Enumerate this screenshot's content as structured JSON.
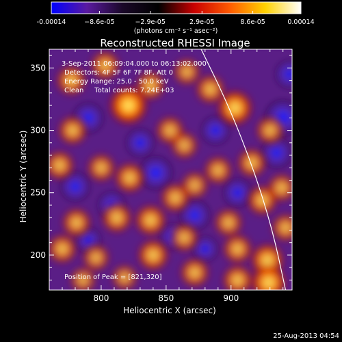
{
  "chart_data": {
    "type": "heatmap",
    "title": "Reconstructed RHESSI Image",
    "xlabel": "Heliocentric X (arcsec)",
    "ylabel": "Heliocentric Y (arcsec)",
    "xlim": [
      760,
      947
    ],
    "ylim": [
      172,
      365
    ],
    "x_ticks": [
      800,
      850,
      900
    ],
    "y_ticks": [
      200,
      250,
      300,
      350
    ],
    "colorbar": {
      "range": [
        -0.00014,
        0.00014
      ],
      "tick_values": [
        -0.00014,
        -8.6e-05,
        -2.9e-05,
        2.9e-05,
        8.6e-05,
        0.00014
      ],
      "tick_labels": [
        "-0.00014",
        "−8.6e-05",
        "−2.9e-05",
        "2.9e-05",
        "8.6e-05",
        "0.00014"
      ],
      "unit_label": "(photons cm⁻² s⁻¹ asec⁻²)",
      "colors": [
        "#0000ff",
        "#5a1aa0",
        "#1a0828",
        "#000000",
        "#c80000",
        "#ff5a00",
        "#ffd200",
        "#ffffff"
      ]
    },
    "info_lines": [
      "3-Sep-2011 06:09:04.000 to 06:13:02.000",
      "Detectors: 4F 5F 6F 7F 8F, Att 0",
      "Energy Range: 25.0 - 50.0 keV",
      "Clean     Total counts: 7.24E+03"
    ],
    "peak_label": "Position of Peak = [821,320]",
    "peak": [
      821,
      320
    ],
    "limb_arc": [
      [
        877,
        365
      ],
      [
        898,
        320
      ],
      [
        917,
        270
      ],
      [
        932,
        220
      ],
      [
        942,
        172
      ]
    ],
    "hotspots": [
      {
        "x": 821,
        "y": 320,
        "a": 1.0
      },
      {
        "x": 838,
        "y": 336,
        "a": 0.55
      },
      {
        "x": 903,
        "y": 318,
        "a": 0.85
      },
      {
        "x": 884,
        "y": 333,
        "a": 0.55
      },
      {
        "x": 777,
        "y": 340,
        "a": 0.6
      },
      {
        "x": 803,
        "y": 352,
        "a": 0.55
      },
      {
        "x": 866,
        "y": 347,
        "a": 0.45
      },
      {
        "x": 853,
        "y": 300,
        "a": 0.5
      },
      {
        "x": 864,
        "y": 288,
        "a": 0.45
      },
      {
        "x": 778,
        "y": 300,
        "a": 0.55
      },
      {
        "x": 768,
        "y": 272,
        "a": 0.55
      },
      {
        "x": 822,
        "y": 262,
        "a": 0.6
      },
      {
        "x": 800,
        "y": 270,
        "a": 0.5
      },
      {
        "x": 857,
        "y": 246,
        "a": 0.55
      },
      {
        "x": 872,
        "y": 256,
        "a": 0.45
      },
      {
        "x": 890,
        "y": 268,
        "a": 0.5
      },
      {
        "x": 916,
        "y": 274,
        "a": 0.55
      },
      {
        "x": 930,
        "y": 300,
        "a": 0.5
      },
      {
        "x": 939,
        "y": 254,
        "a": 0.5
      },
      {
        "x": 924,
        "y": 244,
        "a": 0.6
      },
      {
        "x": 838,
        "y": 228,
        "a": 0.65
      },
      {
        "x": 812,
        "y": 230,
        "a": 0.6
      },
      {
        "x": 781,
        "y": 226,
        "a": 0.55
      },
      {
        "x": 770,
        "y": 205,
        "a": 0.55
      },
      {
        "x": 796,
        "y": 198,
        "a": 0.45
      },
      {
        "x": 840,
        "y": 200,
        "a": 0.65
      },
      {
        "x": 864,
        "y": 214,
        "a": 0.5
      },
      {
        "x": 898,
        "y": 226,
        "a": 0.5
      },
      {
        "x": 905,
        "y": 205,
        "a": 0.55
      },
      {
        "x": 928,
        "y": 196,
        "a": 0.75
      },
      {
        "x": 942,
        "y": 222,
        "a": 0.5
      },
      {
        "x": 872,
        "y": 186,
        "a": 0.55
      },
      {
        "x": 905,
        "y": 180,
        "a": 0.6
      },
      {
        "x": 929,
        "y": 178,
        "a": 0.85
      },
      {
        "x": 786,
        "y": 180,
        "a": 0.4
      },
      {
        "x": 818,
        "y": 182,
        "a": 0.4
      }
    ],
    "coldspots": [
      {
        "x": 790,
        "y": 310,
        "a": 0.7
      },
      {
        "x": 780,
        "y": 255,
        "a": 0.65
      },
      {
        "x": 808,
        "y": 240,
        "a": 0.55
      },
      {
        "x": 842,
        "y": 266,
        "a": 0.85
      },
      {
        "x": 830,
        "y": 290,
        "a": 0.6
      },
      {
        "x": 872,
        "y": 232,
        "a": 0.7
      },
      {
        "x": 905,
        "y": 250,
        "a": 0.6
      },
      {
        "x": 888,
        "y": 300,
        "a": 0.6
      },
      {
        "x": 940,
        "y": 310,
        "a": 1.0
      },
      {
        "x": 935,
        "y": 282,
        "a": 0.7
      },
      {
        "x": 945,
        "y": 345,
        "a": 0.6
      },
      {
        "x": 855,
        "y": 215,
        "a": 0.45
      },
      {
        "x": 790,
        "y": 212,
        "a": 0.45
      },
      {
        "x": 880,
        "y": 205,
        "a": 0.45
      }
    ]
  },
  "timestamp": "25-Aug-2013 04:54"
}
